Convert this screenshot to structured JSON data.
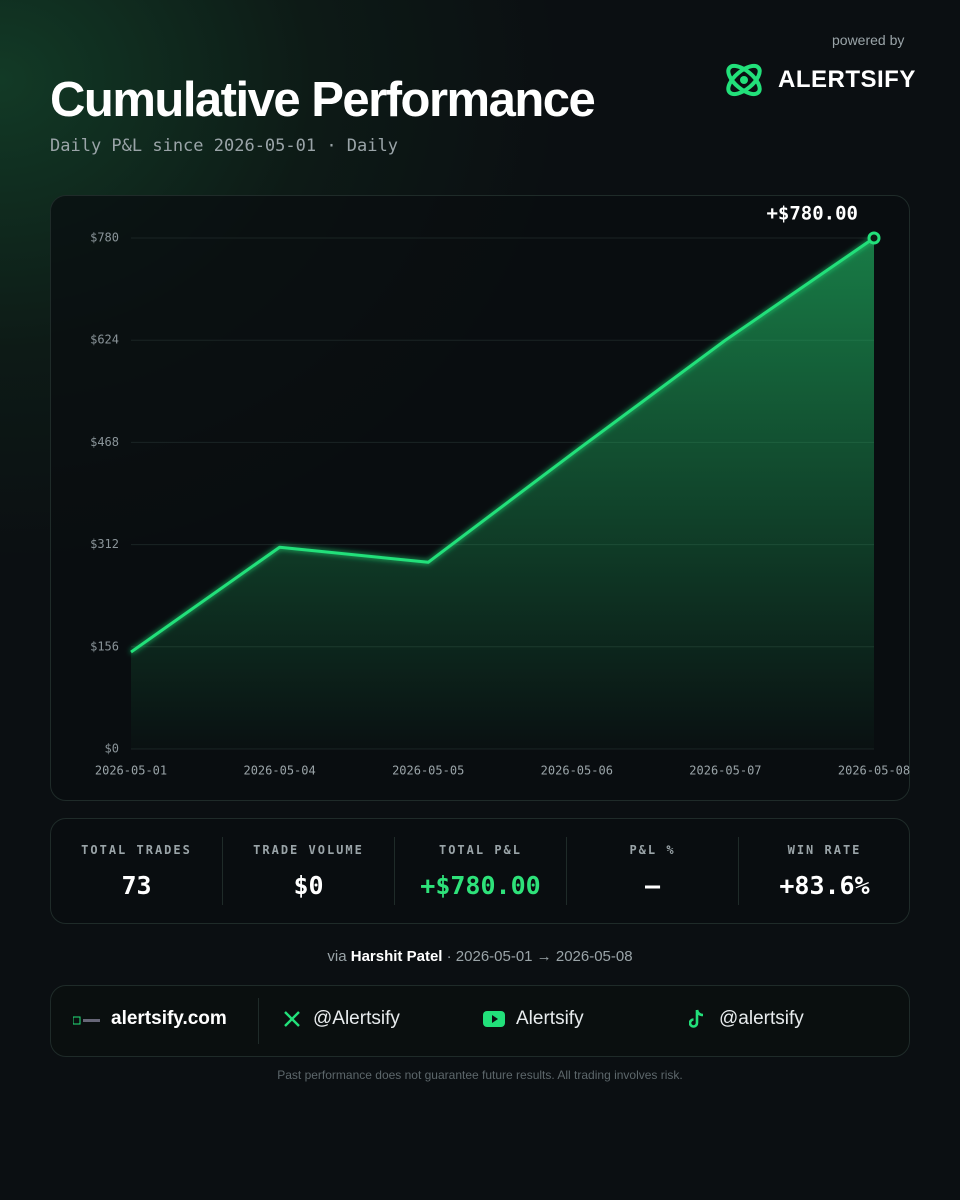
{
  "header": {
    "title": "Cumulative Performance",
    "subtitle": "Daily P&L since 2026-05-01 · Daily",
    "powered_by": "powered by",
    "brand": "ALERTSIFY"
  },
  "chart_data": {
    "type": "line",
    "categories": [
      "2026-05-01",
      "2026-05-04",
      "2026-05-05",
      "2026-05-06",
      "2026-05-07",
      "2026-05-08"
    ],
    "values": [
      148,
      308,
      285,
      456,
      624,
      780
    ],
    "value_labels": [
      null,
      null,
      null,
      null,
      null,
      "+$780.00"
    ],
    "color": "#22e07a",
    "grid": true,
    "ylim": [
      0,
      780
    ],
    "yticks": [
      {
        "value": 0,
        "label": "$0"
      },
      {
        "value": 156,
        "label": "$156"
      },
      {
        "value": 312,
        "label": "$312"
      },
      {
        "value": 468,
        "label": "$468"
      },
      {
        "value": 624,
        "label": "$624"
      },
      {
        "value": 780,
        "label": "$780"
      }
    ]
  },
  "stats": [
    {
      "label": "TOTAL TRADES",
      "value": "73"
    },
    {
      "label": "TRADE VOLUME",
      "value": "$0"
    },
    {
      "label": "TOTAL P&L",
      "value": "+$780.00"
    },
    {
      "label": "P&L %",
      "value": "—"
    },
    {
      "label": "WIN RATE",
      "value": "+83.6%"
    }
  ],
  "via": {
    "prefix": "via",
    "name": "Harshit Patel",
    "range": "· 2026-05-01 → 2026-05-08"
  },
  "links": [
    "alertsify.com",
    "@Alertsify",
    "Alertsify",
    "@alertsify"
  ],
  "disclaimer": "Past performance does not guarantee future results. All trading involves risk."
}
